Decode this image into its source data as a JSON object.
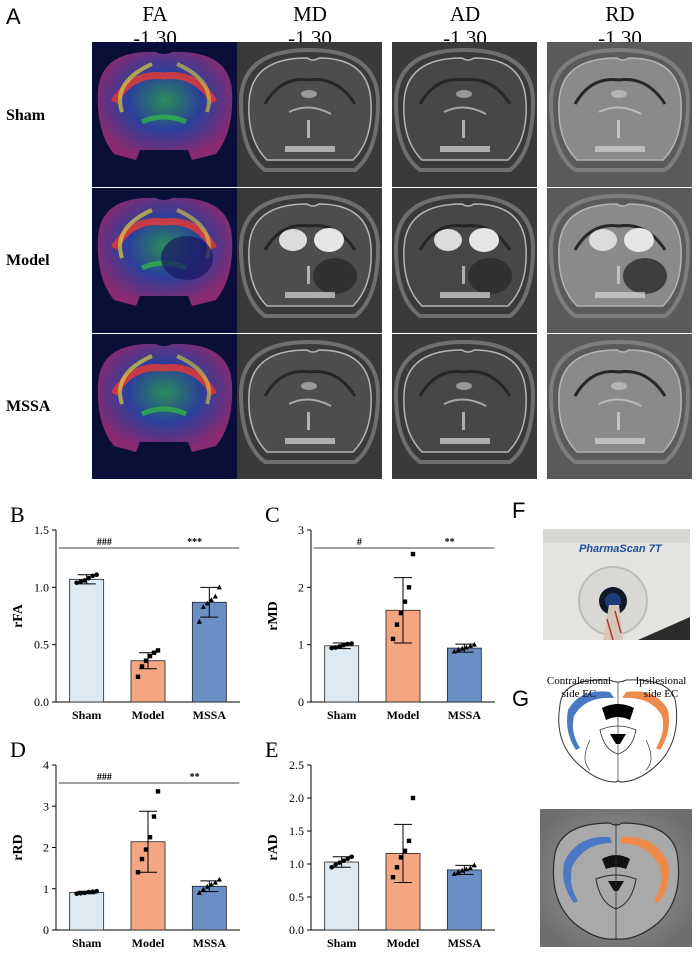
{
  "figure": {
    "panel_a": {
      "label": "A",
      "columns": [
        {
          "name": "FA",
          "coord": "-1.30"
        },
        {
          "name": "MD",
          "coord": "-1.30"
        },
        {
          "name": "AD",
          "coord": "-1.30"
        },
        {
          "name": "RD",
          "coord": "-1.30"
        }
      ],
      "rows": [
        "Sham",
        "Model",
        "MSSA"
      ]
    },
    "panel_f": {
      "label": "F",
      "scanner_text": "PharmaScan 7T"
    },
    "panel_g": {
      "label": "G",
      "left_text": "Contralesional side EC",
      "right_text": "Ipsilesional side EC",
      "left_line1": "Contralesional",
      "left_line2": "side EC",
      "right_line1": "Ipsilesional",
      "right_line2": "side EC"
    },
    "colors": {
      "sham": "#dde9f3",
      "model": "#f4a582",
      "mssa": "#6a8fc4",
      "cerebral_left": "#4a78c2",
      "cerebral_right": "#f08a4b"
    }
  },
  "chart_data": [
    {
      "panel": "B",
      "type": "bar",
      "ylabel": "rFA",
      "categories": [
        "Sham",
        "Model",
        "MSSA"
      ],
      "values": [
        1.07,
        0.36,
        0.87
      ],
      "errors": [
        0.04,
        0.07,
        0.13
      ],
      "points": [
        [
          1.04,
          1.05,
          1.06,
          1.08,
          1.1,
          1.11
        ],
        [
          0.22,
          0.31,
          0.36,
          0.4,
          0.43,
          0.45
        ],
        [
          0.7,
          0.83,
          0.86,
          0.89,
          0.92,
          1.0
        ]
      ],
      "ylim": [
        0,
        1.5
      ],
      "ticks": [
        "0.0",
        "0.5",
        "1.0",
        "1.5"
      ],
      "tick_values": [
        0,
        0.5,
        1.0,
        1.5
      ],
      "comparisons": [
        {
          "from": 0,
          "to": 1,
          "label": "###"
        },
        {
          "from": 1,
          "to": 2,
          "label": "***"
        }
      ]
    },
    {
      "panel": "C",
      "type": "bar",
      "ylabel": "rMD",
      "categories": [
        "Sham",
        "Model",
        "MSSA"
      ],
      "values": [
        0.98,
        1.6,
        0.94
      ],
      "errors": [
        0.05,
        0.57,
        0.07
      ],
      "points": [
        [
          0.94,
          0.95,
          0.97,
          0.99,
          1.01,
          1.02
        ],
        [
          1.1,
          1.35,
          1.55,
          1.75,
          2.0,
          2.58
        ],
        [
          0.88,
          0.91,
          0.93,
          0.95,
          0.98,
          1.0
        ]
      ],
      "ylim": [
        0,
        3
      ],
      "ticks": [
        "0",
        "1",
        "2",
        "3"
      ],
      "tick_values": [
        0,
        1,
        2,
        3
      ],
      "comparisons": [
        {
          "from": 0,
          "to": 1,
          "label": "#"
        },
        {
          "from": 1,
          "to": 2,
          "label": "**"
        }
      ]
    },
    {
      "panel": "D",
      "type": "bar",
      "ylabel": "rRD",
      "categories": [
        "Sham",
        "Model",
        "MSSA"
      ],
      "values": [
        0.91,
        2.14,
        1.06
      ],
      "errors": [
        0.03,
        0.74,
        0.13
      ],
      "points": [
        [
          0.88,
          0.89,
          0.9,
          0.92,
          0.93,
          0.94
        ],
        [
          1.4,
          1.72,
          1.95,
          2.25,
          2.75,
          3.36
        ],
        [
          0.9,
          0.98,
          1.05,
          1.1,
          1.15,
          1.22
        ]
      ],
      "ylim": [
        0,
        4
      ],
      "ticks": [
        "0",
        "1",
        "2",
        "3",
        "4"
      ],
      "tick_values": [
        0,
        1,
        2,
        3,
        4
      ],
      "comparisons": [
        {
          "from": 0,
          "to": 1,
          "label": "###"
        },
        {
          "from": 1,
          "to": 2,
          "label": "**"
        }
      ]
    },
    {
      "panel": "E",
      "type": "bar",
      "ylabel": "rAD",
      "categories": [
        "Sham",
        "Model",
        "MSSA"
      ],
      "values": [
        1.03,
        1.16,
        0.91
      ],
      "errors": [
        0.08,
        0.44,
        0.07
      ],
      "points": [
        [
          0.95,
          0.99,
          1.02,
          1.05,
          1.08,
          1.11
        ],
        [
          0.8,
          0.95,
          1.1,
          1.2,
          1.35,
          2.0
        ],
        [
          0.85,
          0.88,
          0.9,
          0.92,
          0.94,
          0.98
        ]
      ],
      "ylim": [
        0,
        2.5
      ],
      "ticks": [
        "0.0",
        "0.5",
        "1.0",
        "1.5",
        "2.0",
        "2.5"
      ],
      "tick_values": [
        0,
        0.5,
        1.0,
        1.5,
        2.0,
        2.5
      ],
      "comparisons": []
    }
  ]
}
